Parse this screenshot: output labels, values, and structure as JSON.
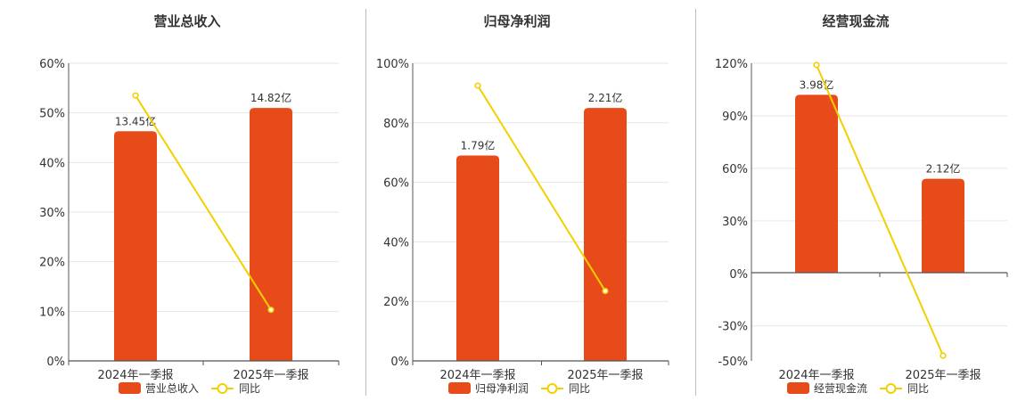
{
  "colors": {
    "bar": "#e84b1a",
    "line": "#f2d000",
    "grid": "#e6e6e6",
    "axis": "#555555"
  },
  "chart_data": [
    {
      "type": "bar",
      "title": "营业总收入",
      "categories": [
        "2024年一季报",
        "2025年一季报"
      ],
      "series": [
        {
          "name": "营业总收入",
          "type": "bar",
          "values": [
            13.45,
            14.82
          ],
          "labels": [
            "13.45亿",
            "14.82亿"
          ],
          "values_on_pct_axis": [
            46.3,
            51.0
          ]
        },
        {
          "name": "同比",
          "type": "line",
          "values": [
            53.5,
            10.3
          ]
        }
      ],
      "yaxis": {
        "ticks": [
          "60%",
          "50%",
          "40%",
          "30%",
          "20%",
          "10%",
          "0%"
        ],
        "ylim": [
          0,
          60
        ]
      },
      "grid": true,
      "legend": "bottom"
    },
    {
      "type": "bar",
      "title": "归母净利润",
      "categories": [
        "2024年一季报",
        "2025年一季报"
      ],
      "series": [
        {
          "name": "归母净利润",
          "type": "bar",
          "values": [
            1.79,
            2.21
          ],
          "labels": [
            "1.79亿",
            "2.21亿"
          ],
          "values_on_pct_axis": [
            69.0,
            85.0
          ]
        },
        {
          "name": "同比",
          "type": "line",
          "values": [
            92.5,
            23.5
          ]
        }
      ],
      "yaxis": {
        "ticks": [
          "100%",
          "80%",
          "60%",
          "40%",
          "20%",
          "0%"
        ],
        "ylim": [
          0,
          100
        ]
      },
      "grid": true,
      "legend": "bottom"
    },
    {
      "type": "bar",
      "title": "经营现金流",
      "categories": [
        "2024年一季报",
        "2025年一季报"
      ],
      "series": [
        {
          "name": "经营现金流",
          "type": "bar",
          "values": [
            3.98,
            2.12
          ],
          "labels": [
            "3.98亿",
            "2.12亿"
          ],
          "values_on_pct_axis": [
            102.0,
            54.0
          ]
        },
        {
          "name": "同比",
          "type": "line",
          "values": [
            119,
            -47
          ]
        }
      ],
      "yaxis": {
        "ticks": [
          "120%",
          "90%",
          "60%",
          "30%",
          "0%",
          "-30%",
          "-50%"
        ],
        "ylim": [
          -50,
          120
        ]
      },
      "grid": true,
      "legend": "bottom"
    }
  ]
}
